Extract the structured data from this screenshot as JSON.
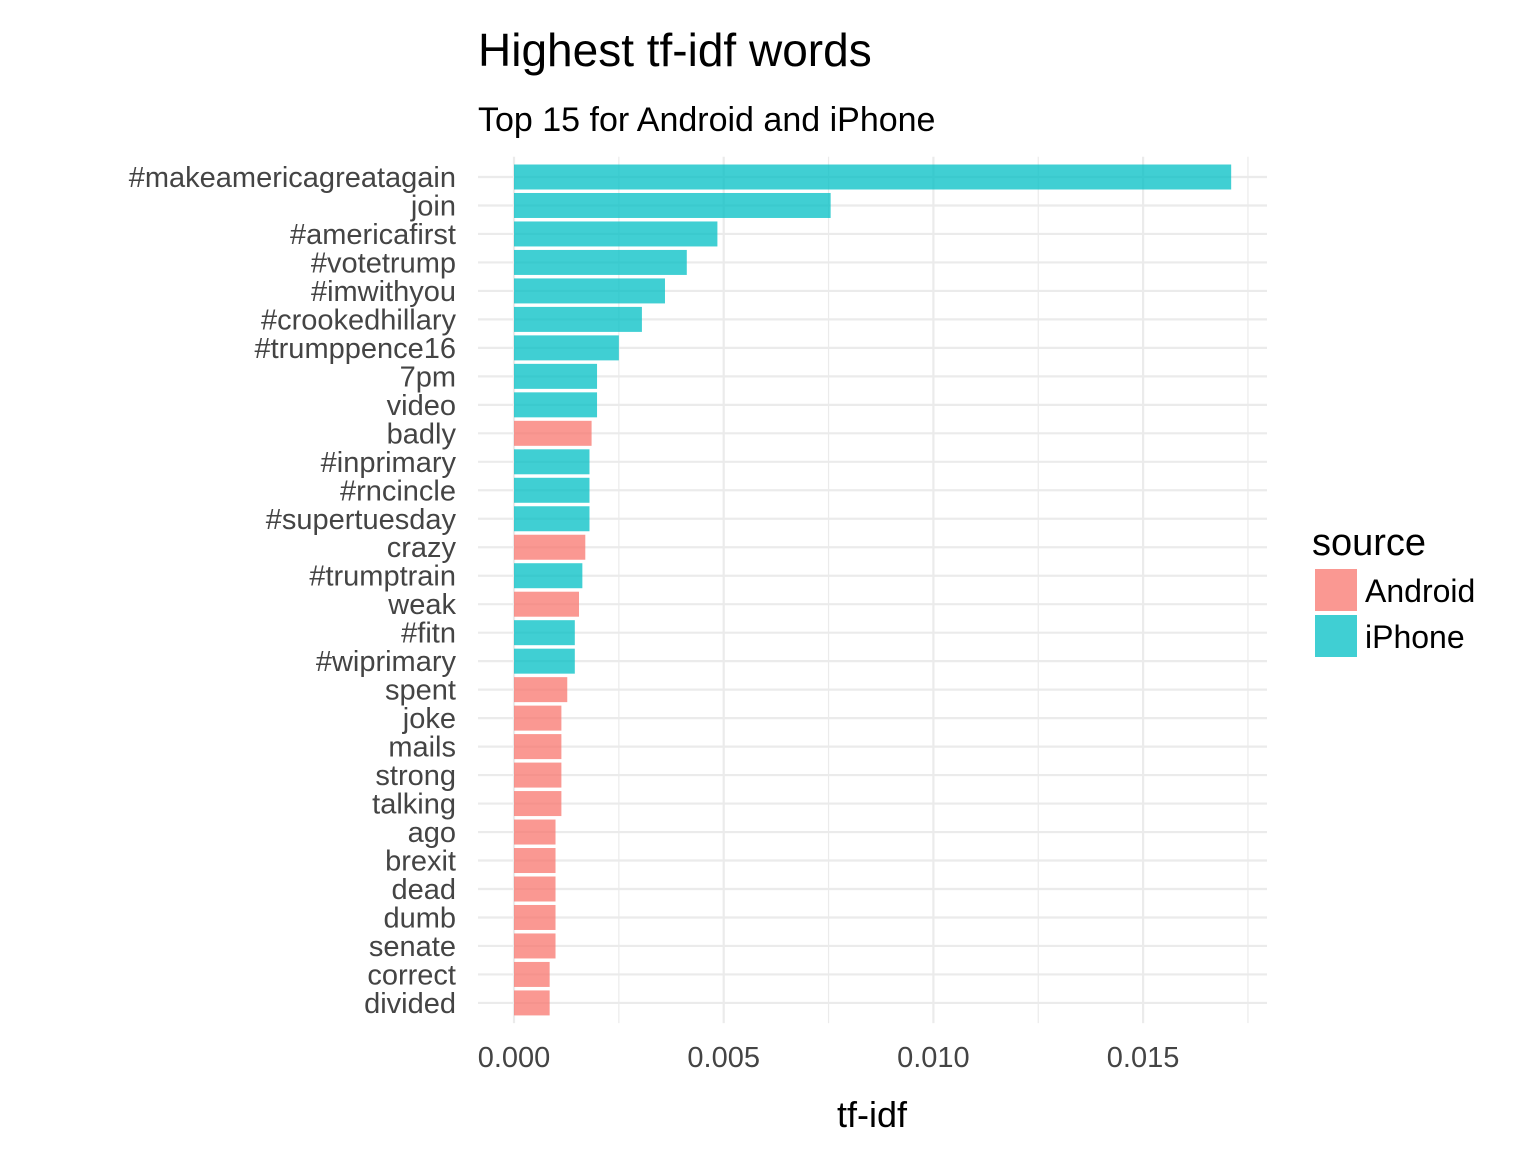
{
  "chart_data": {
    "type": "bar",
    "orientation": "horizontal",
    "title": "Highest tf-idf words",
    "subtitle": "Top 15 for Android and iPhone",
    "xlabel": "tf-idf",
    "ylabel": "",
    "xlim": [
      0,
      0.018
    ],
    "xticks": [
      "0.000",
      "0.005",
      "0.010",
      "0.015"
    ],
    "xtick_values": [
      0,
      0.005,
      0.01,
      0.015
    ],
    "grid": true,
    "legend": {
      "title": "source",
      "position": "right",
      "entries": [
        {
          "name": "Android",
          "color": "#F8766D"
        },
        {
          "name": "iPhone",
          "color": "#00BFC4"
        }
      ]
    },
    "bars": [
      {
        "word": "#makeamericagreatagain",
        "value": 0.0171,
        "source": "iPhone"
      },
      {
        "word": "join",
        "value": 0.00755,
        "source": "iPhone"
      },
      {
        "word": "#americafirst",
        "value": 0.00485,
        "source": "iPhone"
      },
      {
        "word": "#votetrump",
        "value": 0.00412,
        "source": "iPhone"
      },
      {
        "word": "#imwithyou",
        "value": 0.0036,
        "source": "iPhone"
      },
      {
        "word": "#crookedhillary",
        "value": 0.00305,
        "source": "iPhone"
      },
      {
        "word": "#trumppence16",
        "value": 0.0025,
        "source": "iPhone"
      },
      {
        "word": "7pm",
        "value": 0.00198,
        "source": "iPhone"
      },
      {
        "word": "video",
        "value": 0.00198,
        "source": "iPhone"
      },
      {
        "word": "badly",
        "value": 0.00185,
        "source": "Android"
      },
      {
        "word": "#inprimary",
        "value": 0.0018,
        "source": "iPhone"
      },
      {
        "word": "#rncincle",
        "value": 0.0018,
        "source": "iPhone"
      },
      {
        "word": "#supertuesday",
        "value": 0.0018,
        "source": "iPhone"
      },
      {
        "word": "crazy",
        "value": 0.0017,
        "source": "Android"
      },
      {
        "word": "#trumptrain",
        "value": 0.00163,
        "source": "iPhone"
      },
      {
        "word": "weak",
        "value": 0.00155,
        "source": "Android"
      },
      {
        "word": "#fitn",
        "value": 0.00145,
        "source": "iPhone"
      },
      {
        "word": "#wiprimary",
        "value": 0.00145,
        "source": "iPhone"
      },
      {
        "word": "spent",
        "value": 0.00127,
        "source": "Android"
      },
      {
        "word": "joke",
        "value": 0.00113,
        "source": "Android"
      },
      {
        "word": "mails",
        "value": 0.00113,
        "source": "Android"
      },
      {
        "word": "strong",
        "value": 0.00113,
        "source": "Android"
      },
      {
        "word": "talking",
        "value": 0.00113,
        "source": "Android"
      },
      {
        "word": "ago",
        "value": 0.00099,
        "source": "Android"
      },
      {
        "word": "brexit",
        "value": 0.00099,
        "source": "Android"
      },
      {
        "word": "dead",
        "value": 0.00099,
        "source": "Android"
      },
      {
        "word": "dumb",
        "value": 0.00099,
        "source": "Android"
      },
      {
        "word": "senate",
        "value": 0.00099,
        "source": "Android"
      },
      {
        "word": "correct",
        "value": 0.00085,
        "source": "Android"
      },
      {
        "word": "divided",
        "value": 0.00085,
        "source": "Android"
      }
    ]
  }
}
